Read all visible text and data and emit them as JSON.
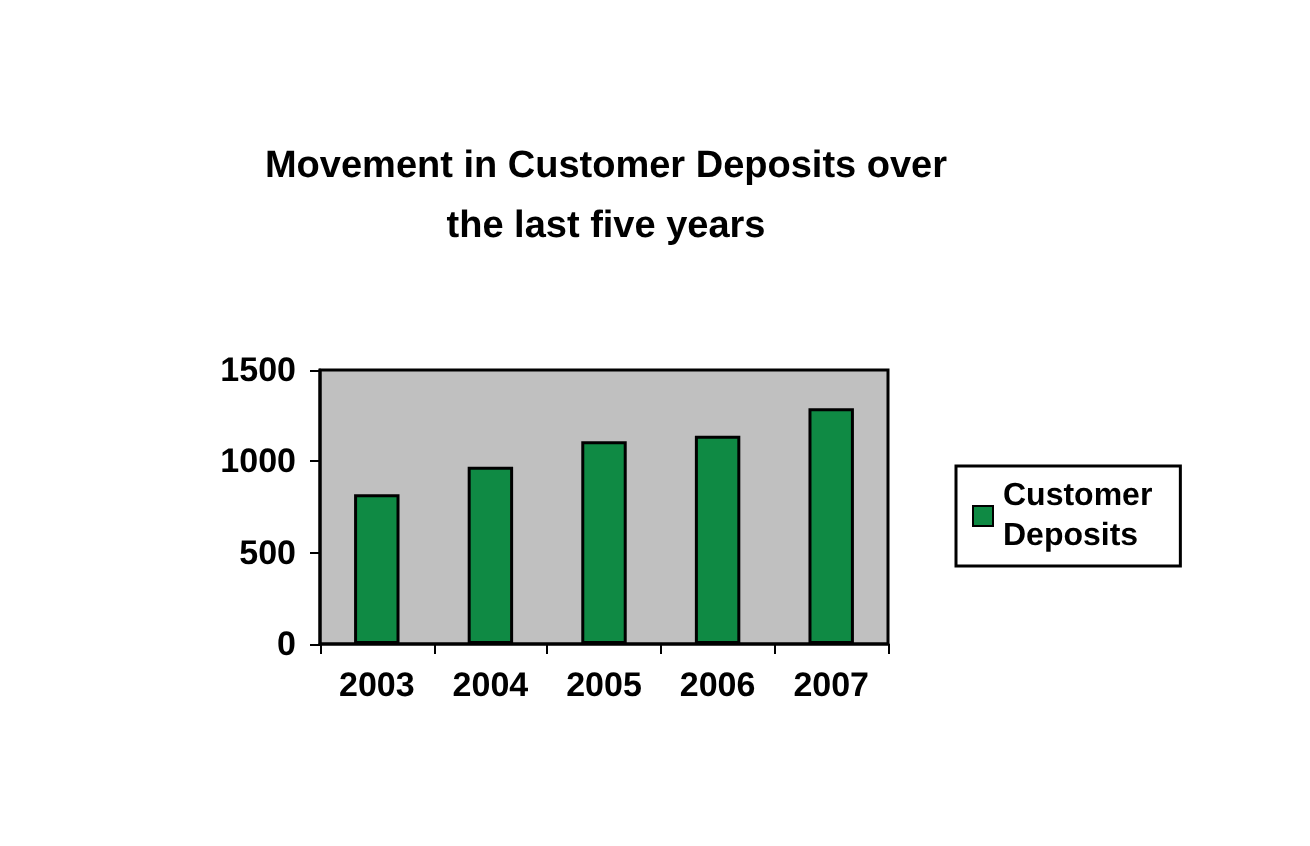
{
  "chart_data": {
    "type": "bar",
    "title": "Movement in Customer Deposits over\nthe last five years",
    "categories": [
      "2003",
      "2004",
      "2005",
      "2006",
      "2007"
    ],
    "series": [
      {
        "name": "Customer\nDeposits",
        "color": "#0f8a44",
        "values": [
          820,
          970,
          1110,
          1140,
          1290
        ]
      }
    ],
    "ylim": [
      0,
      1500
    ],
    "yticks": [
      0,
      500,
      1000,
      1500
    ],
    "grid": false,
    "legend": "right"
  }
}
